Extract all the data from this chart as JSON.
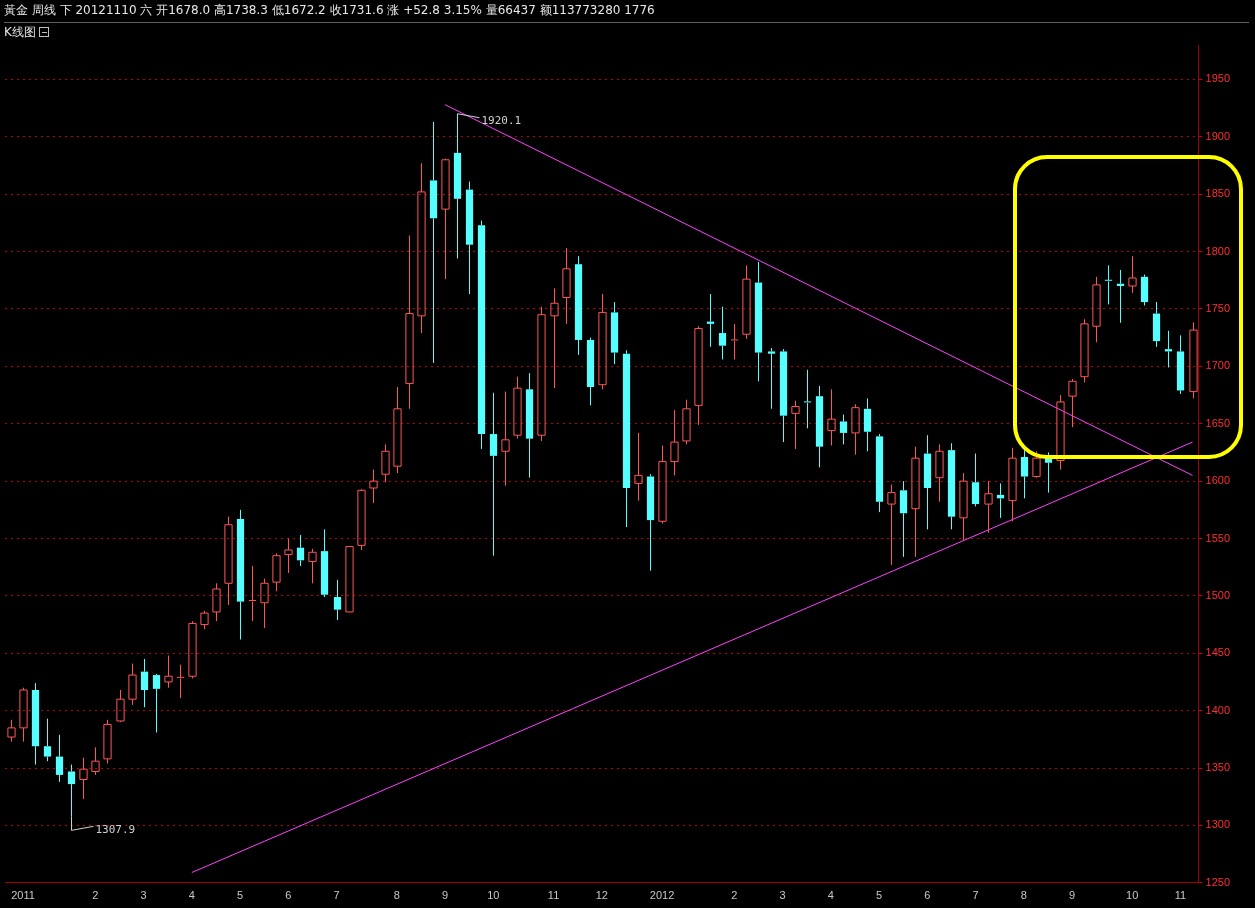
{
  "chart_data": {
    "type": "candlestick",
    "title": "黃金 周线 下 20121110 六 开1678.0 高1738.3 低1672.2 收1731.6 涨 +52.8 3.15% 量66437 额113773280 1776",
    "categories": [
      null,
      "2011",
      null,
      null,
      null,
      null,
      null,
      "2",
      null,
      null,
      null,
      "3",
      null,
      null,
      null,
      "4",
      null,
      null,
      null,
      "5",
      null,
      null,
      null,
      "6",
      null,
      null,
      null,
      "7",
      null,
      null,
      null,
      null,
      "8",
      null,
      null,
      null,
      "9",
      null,
      null,
      null,
      "10",
      null,
      null,
      null,
      null,
      "11",
      null,
      null,
      null,
      "12",
      null,
      null,
      null,
      null,
      "2012",
      null,
      null,
      null,
      null,
      null,
      "2",
      null,
      null,
      null,
      "3",
      null,
      null,
      null,
      "4",
      null,
      null,
      null,
      "5",
      null,
      null,
      null,
      "6",
      null,
      null,
      null,
      "7",
      null,
      null,
      null,
      "8",
      null,
      null,
      null,
      "9",
      null,
      null,
      null,
      null,
      "10",
      null,
      null,
      null,
      "11",
      null
    ],
    "ohlc": [
      [
        1377,
        1392,
        1373,
        1385
      ],
      [
        1385,
        1420,
        1373,
        1418
      ],
      [
        1418,
        1424,
        1353,
        1369
      ],
      [
        1369,
        1393,
        1356,
        1360
      ],
      [
        1360,
        1379,
        1338,
        1344
      ],
      [
        1347,
        1353,
        1307.9,
        1336
      ],
      [
        1340,
        1359,
        1323,
        1349
      ],
      [
        1347,
        1368,
        1344,
        1356
      ],
      [
        1358,
        1392,
        1354,
        1388
      ],
      [
        1391,
        1418,
        1390,
        1410
      ],
      [
        1410,
        1441,
        1405,
        1431
      ],
      [
        1434,
        1445,
        1403,
        1418
      ],
      [
        1431,
        1432,
        1381,
        1419
      ],
      [
        1425,
        1448,
        1420,
        1430
      ],
      [
        1428,
        1440,
        1411,
        1429
      ],
      [
        1430,
        1478,
        1428,
        1476
      ],
      [
        1475,
        1487,
        1471,
        1485
      ],
      [
        1486,
        1511,
        1478,
        1506
      ],
      [
        1511,
        1569,
        1492,
        1562
      ],
      [
        1567,
        1575,
        1462,
        1495
      ],
      [
        1495,
        1526,
        1478,
        1496
      ],
      [
        1494,
        1515,
        1472,
        1511
      ],
      [
        1512,
        1537,
        1504,
        1535
      ],
      [
        1536,
        1550,
        1520,
        1540
      ],
      [
        1542,
        1553,
        1526,
        1531
      ],
      [
        1530,
        1541,
        1511,
        1538
      ],
      [
        1539,
        1558,
        1499,
        1501
      ],
      [
        1499,
        1514,
        1479,
        1488
      ],
      [
        1486,
        1543,
        1486,
        1543
      ],
      [
        1544,
        1593,
        1540,
        1592
      ],
      [
        1594,
        1610,
        1581,
        1600
      ],
      [
        1606,
        1632,
        1599,
        1626
      ],
      [
        1613,
        1682,
        1607,
        1663
      ],
      [
        1685,
        1814,
        1663,
        1746
      ],
      [
        1744,
        1877,
        1729,
        1852
      ],
      [
        1862,
        1913,
        1703,
        1829
      ],
      [
        1837,
        1881,
        1776,
        1880
      ],
      [
        1886,
        1920.1,
        1794,
        1846
      ],
      [
        1854,
        1861,
        1763,
        1806
      ],
      [
        1823,
        1827,
        1628,
        1641
      ],
      [
        1641,
        1677,
        1535,
        1622
      ],
      [
        1626,
        1678,
        1596,
        1636
      ],
      [
        1640,
        1691,
        1637,
        1681
      ],
      [
        1680,
        1694,
        1603,
        1637
      ],
      [
        1640,
        1752,
        1635,
        1745
      ],
      [
        1744,
        1768,
        1681,
        1755
      ],
      [
        1760,
        1803,
        1737,
        1785
      ],
      [
        1789,
        1796,
        1710,
        1723
      ],
      [
        1723,
        1725,
        1666,
        1682
      ],
      [
        1684,
        1763,
        1680,
        1747
      ],
      [
        1747,
        1756,
        1702,
        1712
      ],
      [
        1711,
        1714,
        1560,
        1594
      ],
      [
        1598,
        1642,
        1583,
        1605
      ],
      [
        1604,
        1606,
        1522,
        1566
      ],
      [
        1565,
        1631,
        1563,
        1617
      ],
      [
        1617,
        1662,
        1605,
        1634
      ],
      [
        1635,
        1671,
        1632,
        1663
      ],
      [
        1666,
        1735,
        1649,
        1733
      ],
      [
        1739,
        1763,
        1717,
        1737
      ],
      [
        1729,
        1752,
        1706,
        1718
      ],
      [
        1722,
        1737,
        1706,
        1723
      ],
      [
        1728,
        1788,
        1724,
        1776
      ],
      [
        1773,
        1791,
        1687,
        1712
      ],
      [
        1713,
        1716,
        1663,
        1711
      ],
      [
        1713,
        1715,
        1634,
        1657
      ],
      [
        1659,
        1670,
        1628,
        1665
      ],
      [
        1669,
        1697,
        1646,
        1668
      ],
      [
        1674,
        1683,
        1612,
        1630
      ],
      [
        1644,
        1680,
        1631,
        1654
      ],
      [
        1652,
        1658,
        1632,
        1642
      ],
      [
        1642,
        1667,
        1623,
        1664
      ],
      [
        1663,
        1672,
        1626,
        1643
      ],
      [
        1639,
        1641,
        1573,
        1582
      ],
      [
        1580,
        1597,
        1527,
        1590
      ],
      [
        1592,
        1600,
        1534,
        1572
      ],
      [
        1576,
        1630,
        1534,
        1620
      ],
      [
        1624,
        1640,
        1558,
        1594
      ],
      [
        1603,
        1632,
        1582,
        1626
      ],
      [
        1627,
        1633,
        1558,
        1569
      ],
      [
        1568,
        1607,
        1548,
        1600
      ],
      [
        1599,
        1624,
        1578,
        1580
      ],
      [
        1580,
        1600,
        1555,
        1589
      ],
      [
        1588,
        1598,
        1568,
        1585
      ],
      [
        1583,
        1629,
        1565,
        1620
      ],
      [
        1621,
        1627,
        1585,
        1604
      ],
      [
        1604,
        1626,
        1603,
        1620
      ],
      [
        1621,
        1625,
        1590,
        1616
      ],
      [
        1618,
        1675,
        1610,
        1669
      ],
      [
        1674,
        1689,
        1647,
        1687
      ],
      [
        1691,
        1741,
        1686,
        1737
      ],
      [
        1735,
        1778,
        1721,
        1771
      ],
      [
        1775,
        1788,
        1754,
        1774
      ],
      [
        1772,
        1784,
        1738,
        1770
      ],
      [
        1770,
        1796,
        1764,
        1777
      ],
      [
        1778,
        1780,
        1753,
        1756
      ],
      [
        1746,
        1756,
        1717,
        1722
      ],
      [
        1715,
        1731,
        1699,
        1713
      ],
      [
        1713,
        1727,
        1676,
        1679
      ],
      [
        1678.0,
        1738.3,
        1672.2,
        1731.6
      ]
    ],
    "colors": [
      "#ff5555",
      "#ff5555",
      "#55ffff",
      "#55ffff",
      "#55ffff",
      "#55ffff",
      "#ff5555",
      "#ff5555",
      "#ff5555",
      "#ff5555",
      "#ff5555",
      "#55ffff",
      "#55ffff",
      "#ff5555",
      "#ff5555",
      "#ff5555",
      "#ff5555",
      "#ff5555",
      "#ff5555",
      "#55ffff",
      "#ff5555",
      "#ff5555",
      "#ff5555",
      "#ff5555",
      "#55ffff",
      "#ff5555",
      "#55ffff",
      "#55ffff",
      "#ff5555",
      "#ff5555",
      "#ff5555",
      "#ff5555",
      "#ff5555",
      "#ff5555",
      "#ff5555",
      "#55ffff",
      "#ff5555",
      "#55ffff",
      "#55ffff",
      "#55ffff",
      "#55ffff",
      "#ff5555",
      "#ff5555",
      "#55ffff",
      "#ff5555",
      "#ff5555",
      "#ff5555",
      "#55ffff",
      "#55ffff",
      "#ff5555",
      "#55ffff",
      "#55ffff",
      "#ff5555",
      "#55ffff",
      "#ff5555",
      "#ff5555",
      "#ff5555",
      "#ff5555",
      "#55ffff",
      "#55ffff",
      "#ff5555",
      "#ff5555",
      "#55ffff",
      "#55ffff",
      "#55ffff",
      "#ff5555",
      "#55ffff",
      "#55ffff",
      "#ff5555",
      "#55ffff",
      "#ff5555",
      "#55ffff",
      "#55ffff",
      "#ff5555",
      "#55ffff",
      "#ff5555",
      "#55ffff",
      "#ff5555",
      "#55ffff",
      "#ff5555",
      "#55ffff",
      "#ff5555",
      "#55ffff",
      "#ff5555",
      "#55ffff",
      "#ff5555",
      "#55ffff",
      "#ff5555",
      "#ff5555",
      "#ff5555",
      "#ff5555",
      "#55ffff",
      "#55ffff",
      "#ff5555",
      "#55ffff",
      "#55ffff",
      "#55ffff",
      "#55ffff",
      "#ff5555"
    ],
    "value_labels": [
      null,
      null,
      null,
      null,
      null,
      "1307.9",
      null,
      null,
      null,
      null,
      null,
      null,
      null,
      null,
      null,
      null,
      null,
      null,
      null,
      null,
      null,
      null,
      null,
      null,
      null,
      null,
      null,
      null,
      null,
      null,
      null,
      null,
      null,
      null,
      null,
      null,
      null,
      "1920.1",
      null,
      null,
      null,
      null,
      null,
      null,
      null,
      null,
      null,
      null,
      null,
      null,
      null,
      null,
      null,
      null,
      null,
      null,
      null,
      null,
      null,
      null,
      null,
      null,
      null,
      null,
      null,
      null,
      null,
      null,
      null,
      null,
      null,
      null,
      null,
      null,
      null,
      null,
      null,
      null,
      null,
      null,
      null,
      null,
      null,
      null,
      null,
      null,
      null,
      null,
      null,
      null,
      null,
      null,
      null,
      null,
      null,
      null,
      null,
      null,
      null
    ],
    "series": [
      {
        "type": "line",
        "color": "#ff40ff",
        "values": [
          null,
          null,
          null,
          null,
          null,
          null,
          null,
          null,
          null,
          null,
          null,
          null,
          null,
          null,
          null,
          null,
          null,
          null,
          null,
          null,
          null,
          null,
          null,
          null,
          null,
          null,
          null,
          null,
          null,
          null,
          null,
          null,
          null,
          null,
          null,
          null,
          1928,
          null,
          null,
          null,
          null,
          null,
          null,
          null,
          null,
          null,
          null,
          null,
          null,
          null,
          null,
          null,
          null,
          null,
          null,
          null,
          null,
          null,
          null,
          null,
          null,
          null,
          null,
          null,
          null,
          null,
          null,
          null,
          null,
          null,
          null,
          null,
          null,
          null,
          null,
          null,
          null,
          null,
          null,
          null,
          null,
          null,
          null,
          null,
          null,
          null,
          null,
          null,
          null,
          null,
          null,
          null,
          null,
          null,
          null,
          null,
          null,
          null,
          1605
        ]
      },
      {
        "type": "line",
        "color": "#ff40ff",
        "values": [
          null,
          null,
          null,
          null,
          null,
          null,
          null,
          null,
          null,
          null,
          null,
          null,
          null,
          null,
          null,
          1259,
          null,
          null,
          null,
          null,
          null,
          null,
          null,
          null,
          null,
          null,
          null,
          null,
          null,
          null,
          null,
          null,
          null,
          null,
          null,
          null,
          null,
          null,
          null,
          null,
          null,
          null,
          null,
          null,
          null,
          null,
          null,
          null,
          null,
          null,
          null,
          null,
          null,
          null,
          null,
          null,
          null,
          null,
          null,
          null,
          null,
          null,
          null,
          null,
          null,
          null,
          null,
          null,
          null,
          null,
          null,
          null,
          null,
          null,
          null,
          null,
          null,
          null,
          null,
          null,
          null,
          null,
          null,
          null,
          null,
          null,
          null,
          null,
          null,
          null,
          null,
          null,
          null,
          null,
          null,
          null,
          null,
          null,
          1634
        ]
      }
    ],
    "annotations": [
      "K线图"
    ],
    "ylim": [
      1250,
      1980
    ],
    "yticks": [
      1250,
      1300,
      1350,
      1400,
      1450,
      1500,
      1550,
      1600,
      1650,
      1700,
      1750,
      1800,
      1850,
      1900,
      1950
    ],
    "grid": "y"
  }
}
